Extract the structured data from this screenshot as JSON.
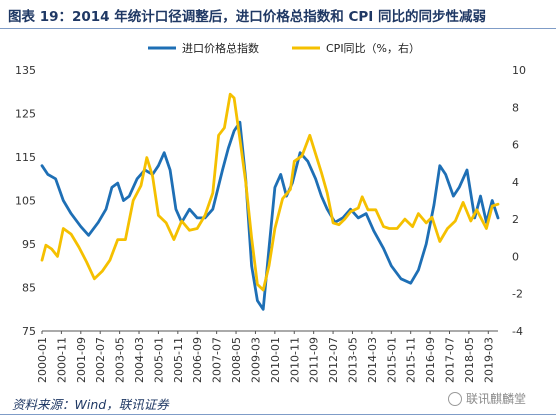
{
  "header": {
    "title": "图表 19：2014 年统计口径调整后，进口价格总指数和 CPI 同比的同步性减弱"
  },
  "footer": {
    "source": "资料来源：Wind，联讯证券",
    "watermark": "联讯麒麟堂"
  },
  "colors": {
    "import_price": "#1e6fb5",
    "cpi": "#f5c000",
    "title": "#1f3864"
  },
  "chart_data": {
    "type": "line",
    "grid": false,
    "legend_position": "top",
    "left_axis": {
      "ticks": [
        "75",
        "85",
        "95",
        "105",
        "115",
        "125",
        "135"
      ],
      "range": [
        75,
        135
      ]
    },
    "right_axis": {
      "ticks": [
        "-4",
        "-2",
        "0",
        "2",
        "4",
        "6",
        "8",
        "10"
      ],
      "range": [
        -4,
        10
      ]
    },
    "x_ticks": [
      "2000-01",
      "2000-11",
      "2001-09",
      "2002-07",
      "2003-05",
      "2004-03",
      "2005-01",
      "2005-11",
      "2006-09",
      "2007-07",
      "2008-05",
      "2009-03",
      "2010-01",
      "2010-11",
      "2011-09",
      "2012-07",
      "2013-05",
      "2014-03",
      "2015-01",
      "2015-11",
      "2016-09",
      "2017-07",
      "2018-05",
      "2019-03"
    ],
    "x_range": [
      "2000-01",
      "2019-08"
    ],
    "series": [
      {
        "name": "进口价格总指数",
        "axis": "left",
        "points": [
          [
            "2000-01",
            113
          ],
          [
            "2000-04",
            111
          ],
          [
            "2000-08",
            110
          ],
          [
            "2000-12",
            105
          ],
          [
            "2001-04",
            102
          ],
          [
            "2001-09",
            99
          ],
          [
            "2002-01",
            97
          ],
          [
            "2002-06",
            100
          ],
          [
            "2002-10",
            103
          ],
          [
            "2003-01",
            108
          ],
          [
            "2003-04",
            109
          ],
          [
            "2003-07",
            105
          ],
          [
            "2003-10",
            106
          ],
          [
            "2004-02",
            110
          ],
          [
            "2004-06",
            112
          ],
          [
            "2004-10",
            111
          ],
          [
            "2005-01",
            113
          ],
          [
            "2005-04",
            116
          ],
          [
            "2005-07",
            112
          ],
          [
            "2005-10",
            103
          ],
          [
            "2006-01",
            100
          ],
          [
            "2006-05",
            103
          ],
          [
            "2006-09",
            101
          ],
          [
            "2007-01",
            101
          ],
          [
            "2007-05",
            103
          ],
          [
            "2007-10",
            112
          ],
          [
            "2008-01",
            117
          ],
          [
            "2008-04",
            121
          ],
          [
            "2008-07",
            123
          ],
          [
            "2008-10",
            110
          ],
          [
            "2009-01",
            90
          ],
          [
            "2009-04",
            82
          ],
          [
            "2009-07",
            80
          ],
          [
            "2009-10",
            94
          ],
          [
            "2010-01",
            108
          ],
          [
            "2010-04",
            111
          ],
          [
            "2010-07",
            106
          ],
          [
            "2010-10",
            109
          ],
          [
            "2011-02",
            116
          ],
          [
            "2011-06",
            114
          ],
          [
            "2011-10",
            110
          ],
          [
            "2012-01",
            106
          ],
          [
            "2012-04",
            103
          ],
          [
            "2012-08",
            100
          ],
          [
            "2012-12",
            101
          ],
          [
            "2013-04",
            103
          ],
          [
            "2013-08",
            101
          ],
          [
            "2013-12",
            102
          ],
          [
            "2014-04",
            98
          ],
          [
            "2014-09",
            94
          ],
          [
            "2015-01",
            90
          ],
          [
            "2015-06",
            87
          ],
          [
            "2015-11",
            86
          ],
          [
            "2016-03",
            89
          ],
          [
            "2016-07",
            95
          ],
          [
            "2016-11",
            104
          ],
          [
            "2017-02",
            113
          ],
          [
            "2017-05",
            111
          ],
          [
            "2017-09",
            106
          ],
          [
            "2017-12",
            108
          ],
          [
            "2018-04",
            112
          ],
          [
            "2018-08",
            101
          ],
          [
            "2018-11",
            106
          ],
          [
            "2019-02",
            100
          ],
          [
            "2019-05",
            105
          ],
          [
            "2019-08",
            101
          ]
        ]
      },
      {
        "name": "CPI同比（%，右）",
        "axis": "right",
        "points": [
          [
            "2000-01",
            -0.2
          ],
          [
            "2000-03",
            0.6
          ],
          [
            "2000-06",
            0.4
          ],
          [
            "2000-09",
            0.0
          ],
          [
            "2000-12",
            1.5
          ],
          [
            "2001-04",
            1.2
          ],
          [
            "2001-08",
            0.5
          ],
          [
            "2001-12",
            -0.3
          ],
          [
            "2002-04",
            -1.2
          ],
          [
            "2002-08",
            -0.8
          ],
          [
            "2002-12",
            -0.2
          ],
          [
            "2003-04",
            0.9
          ],
          [
            "2003-08",
            0.9
          ],
          [
            "2003-12",
            3.0
          ],
          [
            "2004-04",
            3.8
          ],
          [
            "2004-07",
            5.3
          ],
          [
            "2004-10",
            4.3
          ],
          [
            "2005-01",
            2.2
          ],
          [
            "2005-05",
            1.8
          ],
          [
            "2005-09",
            0.9
          ],
          [
            "2006-01",
            1.9
          ],
          [
            "2006-05",
            1.4
          ],
          [
            "2006-09",
            1.5
          ],
          [
            "2007-01",
            2.2
          ],
          [
            "2007-05",
            3.4
          ],
          [
            "2007-08",
            6.5
          ],
          [
            "2007-11",
            6.9
          ],
          [
            "2008-02",
            8.7
          ],
          [
            "2008-04",
            8.5
          ],
          [
            "2008-07",
            6.3
          ],
          [
            "2008-10",
            4.0
          ],
          [
            "2009-01",
            1.0
          ],
          [
            "2009-04",
            -1.5
          ],
          [
            "2009-07",
            -1.8
          ],
          [
            "2009-10",
            -0.5
          ],
          [
            "2010-01",
            1.5
          ],
          [
            "2010-05",
            3.1
          ],
          [
            "2010-09",
            3.6
          ],
          [
            "2010-11",
            5.1
          ],
          [
            "2011-03",
            5.4
          ],
          [
            "2011-07",
            6.5
          ],
          [
            "2011-10",
            5.5
          ],
          [
            "2012-01",
            4.5
          ],
          [
            "2012-04",
            3.4
          ],
          [
            "2012-07",
            1.8
          ],
          [
            "2012-10",
            1.7
          ],
          [
            "2013-01",
            2.0
          ],
          [
            "2013-04",
            2.4
          ],
          [
            "2013-08",
            2.6
          ],
          [
            "2013-10",
            3.2
          ],
          [
            "2014-01",
            2.5
          ],
          [
            "2014-05",
            2.5
          ],
          [
            "2014-09",
            1.6
          ],
          [
            "2014-12",
            1.5
          ],
          [
            "2015-04",
            1.5
          ],
          [
            "2015-08",
            2.0
          ],
          [
            "2015-12",
            1.6
          ],
          [
            "2016-03",
            2.3
          ],
          [
            "2016-07",
            1.8
          ],
          [
            "2016-10",
            2.1
          ],
          [
            "2017-02",
            0.8
          ],
          [
            "2017-06",
            1.5
          ],
          [
            "2017-10",
            1.9
          ],
          [
            "2018-02",
            2.9
          ],
          [
            "2018-06",
            1.9
          ],
          [
            "2018-09",
            2.5
          ],
          [
            "2018-12",
            1.9
          ],
          [
            "2019-02",
            1.5
          ],
          [
            "2019-05",
            2.7
          ],
          [
            "2019-08",
            2.8
          ]
        ]
      }
    ]
  }
}
